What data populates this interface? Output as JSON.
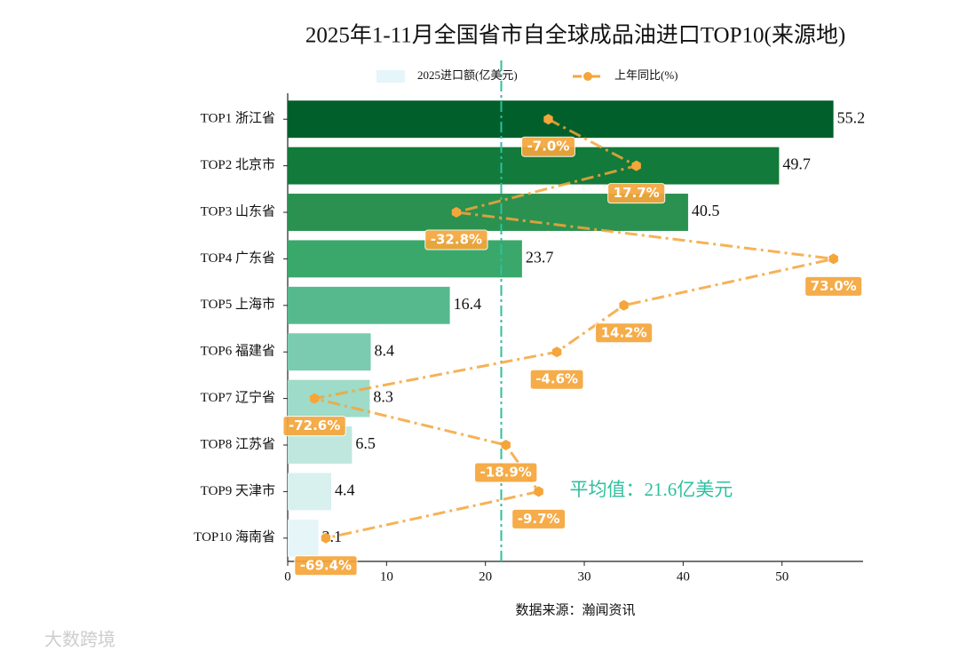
{
  "chart_data": {
    "type": "bar",
    "orientation": "horizontal",
    "title": "2025年1-11月全国省市自全球成品油进口TOP10(来源地)",
    "xlabel": "数据来源：瀚闻资讯",
    "categories": [
      "TOP1 浙江省",
      "TOP2 北京市",
      "TOP3 山东省",
      "TOP4 广东省",
      "TOP5 上海市",
      "TOP6 福建省",
      "TOP7 辽宁省",
      "TOP8 江苏省",
      "TOP9 天津市",
      "TOP10 海南省"
    ],
    "series": [
      {
        "name": "2025进口额(亿美元)",
        "color": "#e5f5f9",
        "colors": [
          "#005f2a",
          "#127a3a",
          "#2a9150",
          "#3aa86a",
          "#56b98e",
          "#7acbb0",
          "#9edbc9",
          "#bfe7dd",
          "#d8f0ee",
          "#e6f5f7"
        ],
        "values": [
          55.2,
          49.7,
          40.5,
          23.7,
          16.4,
          8.4,
          8.3,
          6.5,
          4.4,
          3.1
        ]
      },
      {
        "name": "上年同比(%)",
        "type": "line",
        "axis": "x2",
        "color": "#f5a53a",
        "values": [
          -7.0,
          17.7,
          -32.8,
          73.0,
          14.2,
          -4.6,
          -72.6,
          -18.9,
          -9.7,
          -69.4
        ],
        "value_labels": [
          "-7.0%",
          "17.7%",
          "-32.8%",
          "73.0%",
          "14.2%",
          "-4.6%",
          "-72.6%",
          "-18.9%",
          "-9.7%",
          "-69.4%"
        ]
      }
    ],
    "xlim": [
      0,
      58.2
    ],
    "xticks": [
      0,
      10,
      20,
      30,
      40,
      50
    ],
    "x2lim": [
      -80.1,
      81.3
    ],
    "average": {
      "value": 21.6,
      "label": "平均值：21.6亿美元",
      "color": "#2fbf9f"
    },
    "watermark": "大数跨境"
  }
}
